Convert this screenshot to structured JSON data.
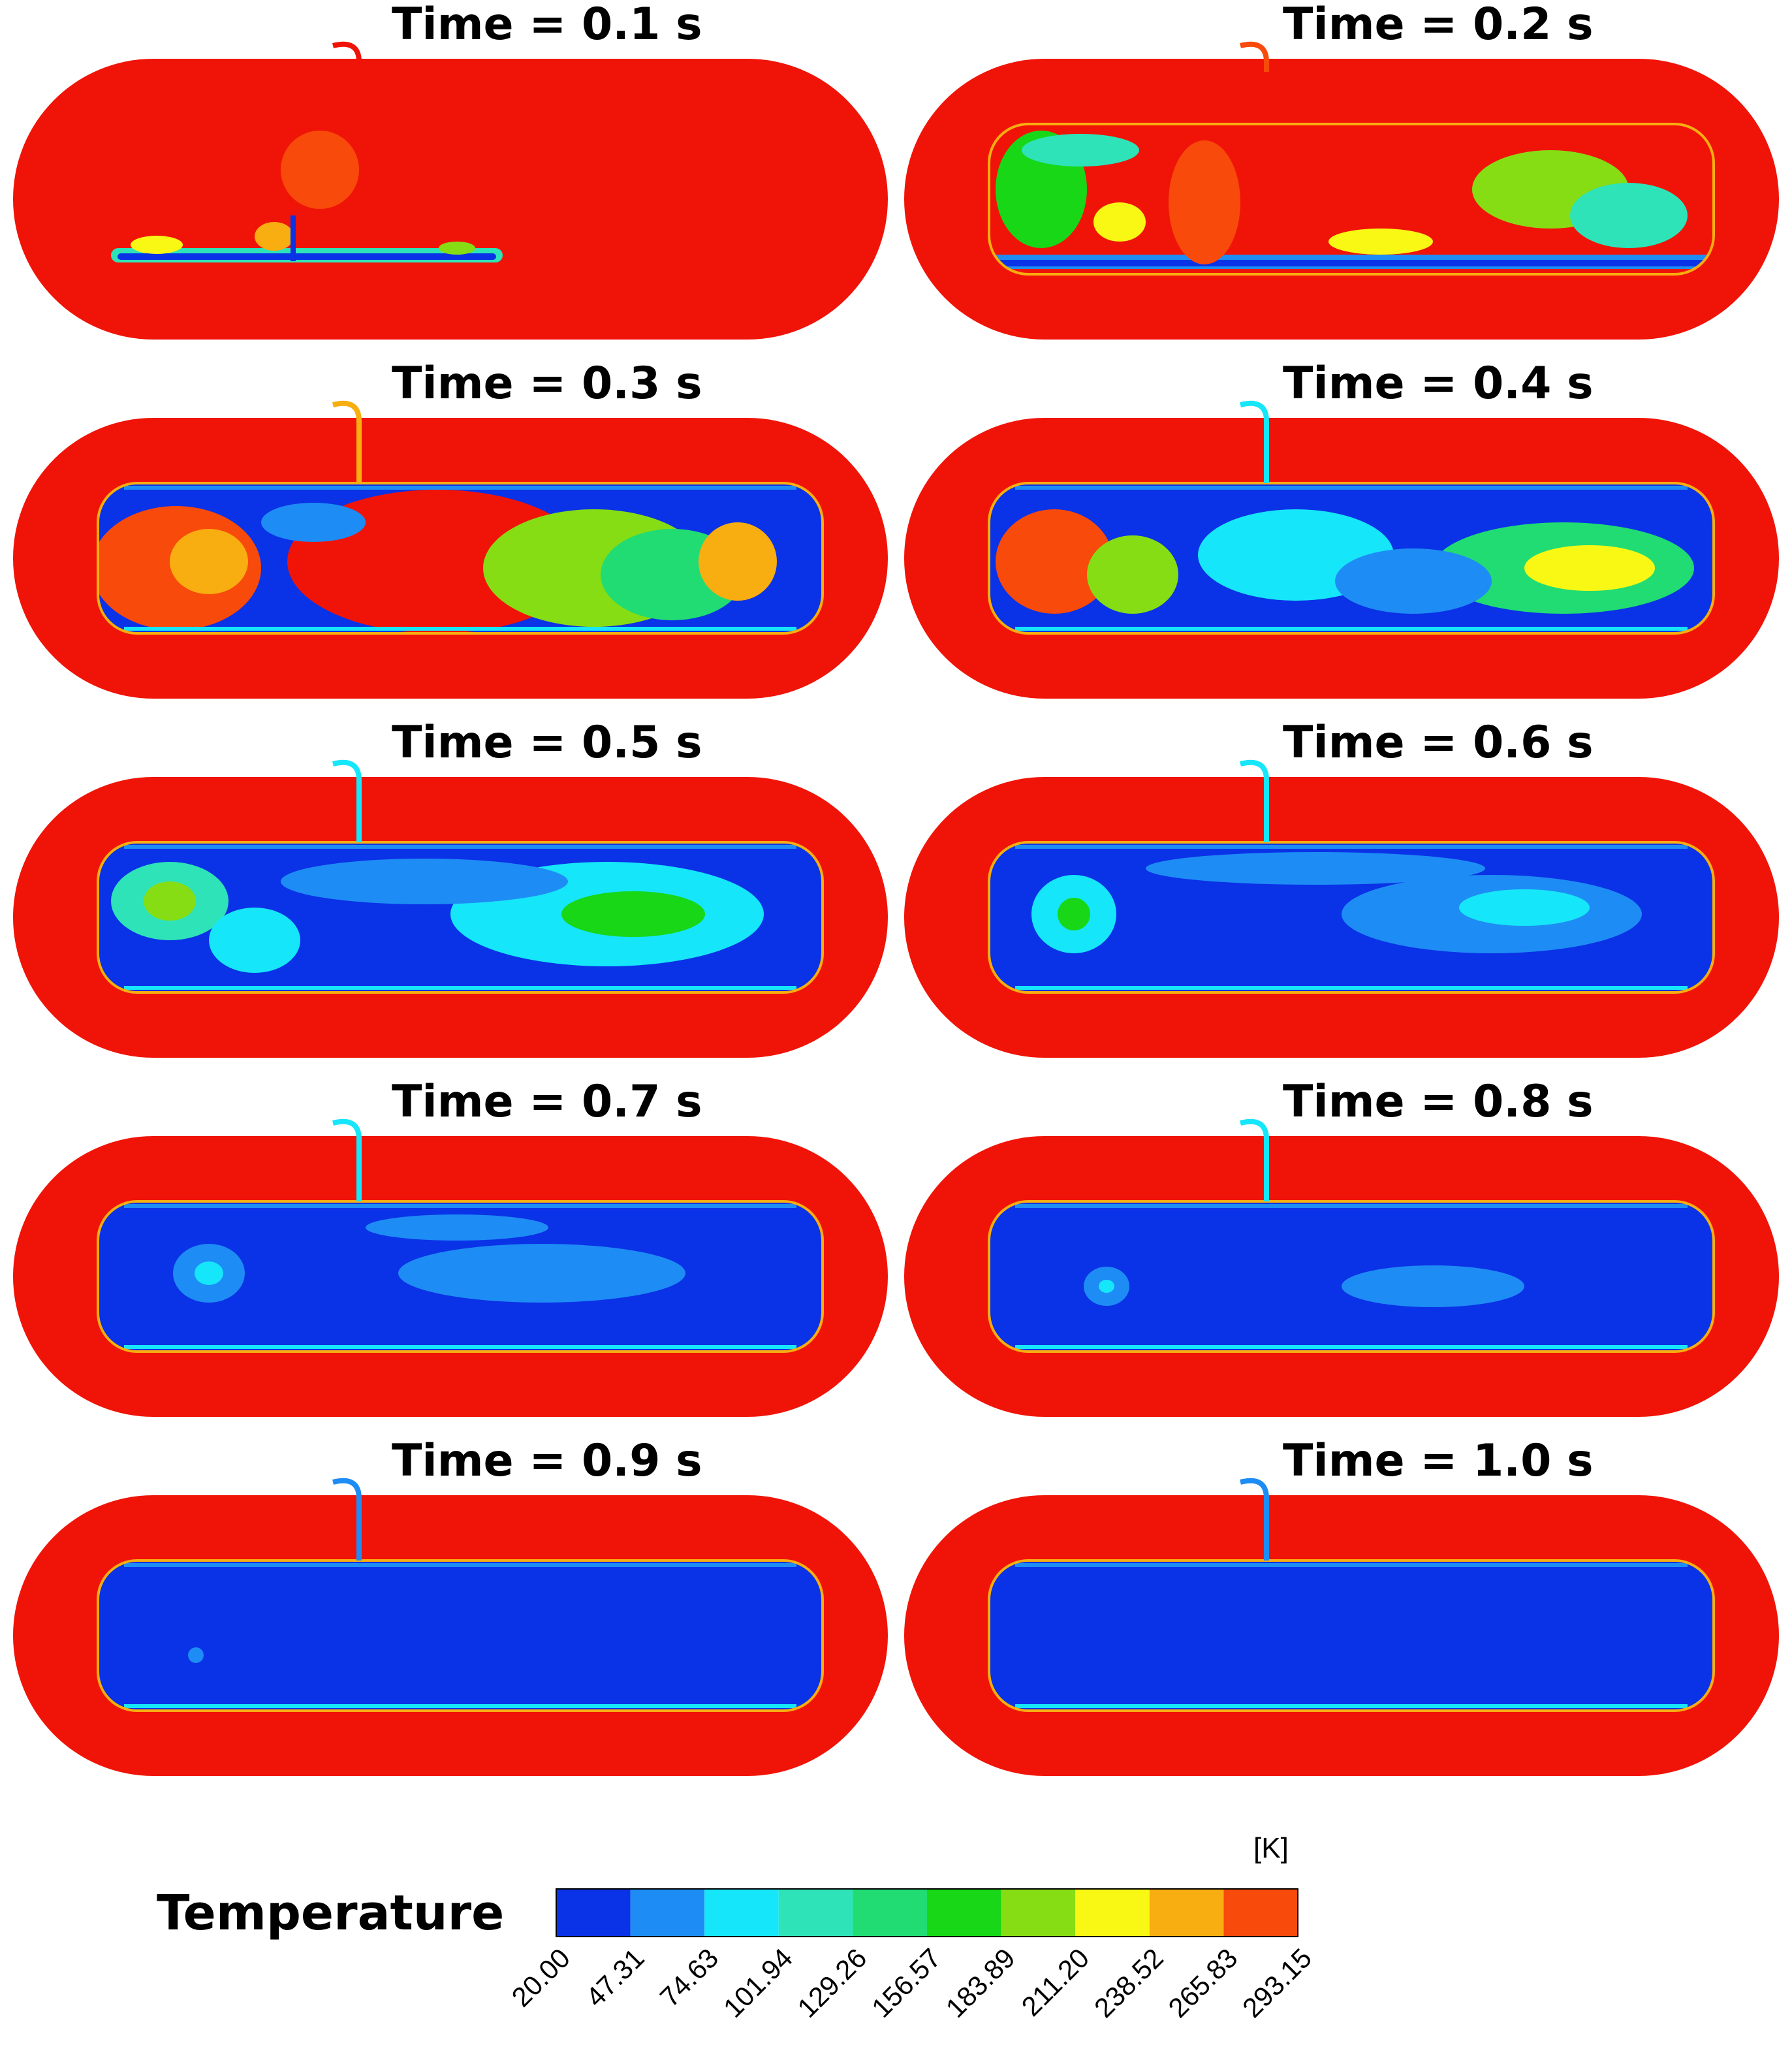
{
  "panels": [
    {
      "time_label": "Time = 0.1 s",
      "stage": 1
    },
    {
      "time_label": "Time = 0.2 s",
      "stage": 2
    },
    {
      "time_label": "Time = 0.3 s",
      "stage": 3
    },
    {
      "time_label": "Time = 0.4 s",
      "stage": 4
    },
    {
      "time_label": "Time = 0.5 s",
      "stage": 5
    },
    {
      "time_label": "Time = 0.6 s",
      "stage": 6
    },
    {
      "time_label": "Time = 0.7 s",
      "stage": 7
    },
    {
      "time_label": "Time = 0.8 s",
      "stage": 8
    },
    {
      "time_label": "Time = 0.9 s",
      "stage": 9
    },
    {
      "time_label": "Time = 1.0 s",
      "stage": 10
    }
  ],
  "legend": {
    "title": "Temperature",
    "unit": "[K]",
    "ticks": [
      "20.00",
      "47.31",
      "74.63",
      "101.94",
      "129.26",
      "156.57",
      "183.89",
      "211.20",
      "238.52",
      "265.83",
      "293.15"
    ],
    "colors": [
      "#0a32e6",
      "#1e8cf5",
      "#16e6fa",
      "#2ee3b8",
      "#21dc72",
      "#17d717",
      "#86dd14",
      "#f8f814",
      "#f8ad10",
      "#f84a0a"
    ]
  },
  "palette": {
    "hot": "#f01408",
    "cold": "#0a32e6",
    "background": "#ffffff"
  }
}
